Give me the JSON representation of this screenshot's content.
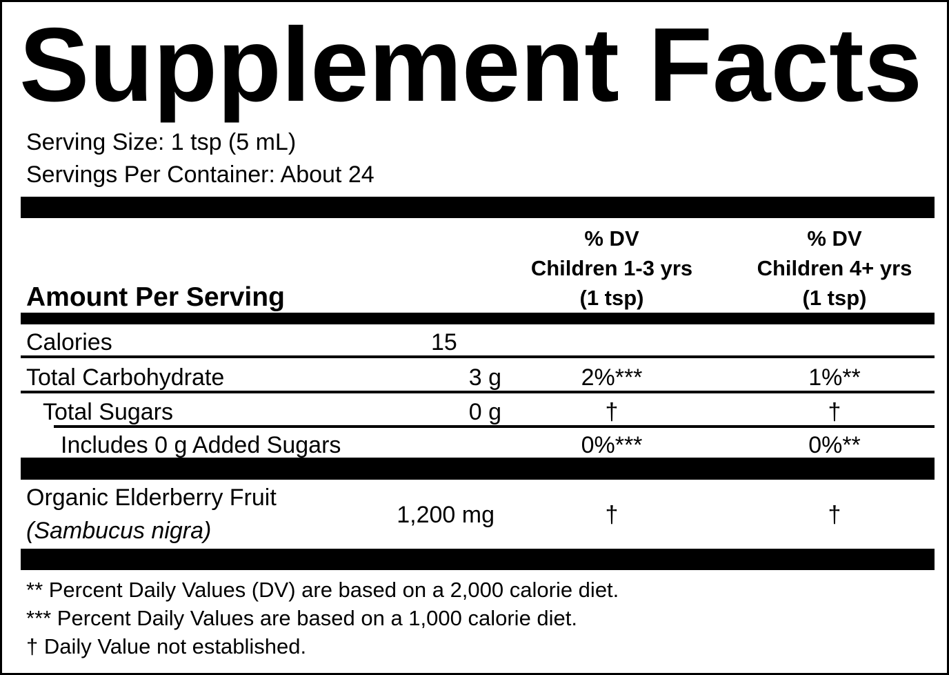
{
  "header": {
    "title": "Supplement Facts",
    "serving_size": "Serving Size: 1 tsp (5 mL)",
    "servings_per_container": "Servings Per Container: About 24"
  },
  "table": {
    "columns": {
      "amount": "Amount Per Serving",
      "dv_young": [
        "% DV",
        "Children 1-3 yrs",
        "(1 tsp)"
      ],
      "dv_old": [
        "% DV",
        "Children 4+ yrs",
        "(1 tsp)"
      ]
    },
    "rows": [
      {
        "name": [
          "Calories"
        ],
        "amount": "15"
      },
      {
        "name": [
          "Total Carbohydrate"
        ],
        "amount": "3 g",
        "dv_young": "2%***",
        "dv_old": "1%**"
      },
      {
        "name": [
          "Total Sugars"
        ],
        "amount": "0 g",
        "dv_young": "†",
        "dv_old": "†"
      },
      {
        "name": [
          "Includes 0 g Added Sugars"
        ],
        "dv_young": "0%***",
        "dv_old": "0%**"
      },
      {
        "name": [
          "Organic Elderberry Fruit",
          "(Sambucus nigra)"
        ],
        "amount": "1,200 mg",
        "dv_young": "†",
        "dv_old": "†"
      }
    ]
  },
  "footnotes": [
    "** Percent Daily Values (DV) are based on a 2,000 calorie diet.",
    "*** Percent Daily Values are based on a 1,000 calorie diet.",
    "† Daily Value not established."
  ]
}
